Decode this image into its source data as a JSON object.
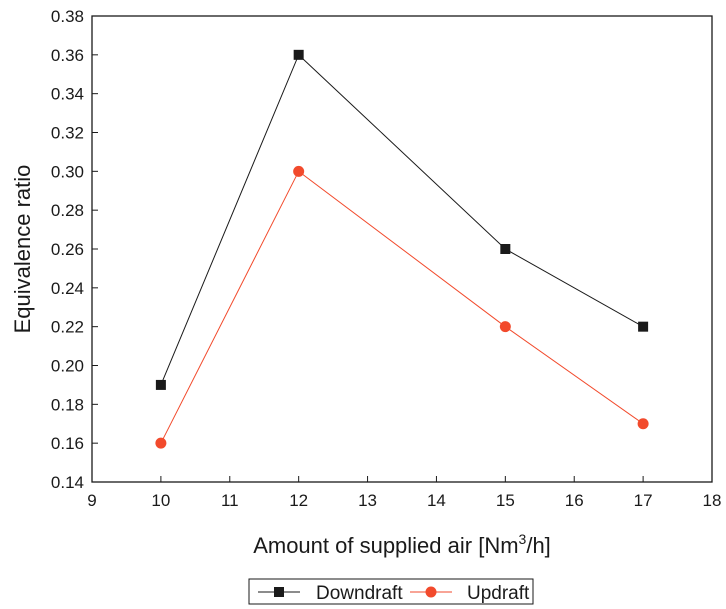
{
  "chart_data": {
    "type": "line",
    "xlabel_main": "Amount of supplied air [Nm",
    "xlabel_sup": "3",
    "xlabel_tail": "/h]",
    "ylabel": "Equivalence ratio",
    "xlim": [
      9,
      18
    ],
    "ylim": [
      0.14,
      0.38
    ],
    "xticks": [
      "9",
      "10",
      "11",
      "12",
      "13",
      "14",
      "15",
      "16",
      "17",
      "18"
    ],
    "yticks": [
      "0.14",
      "0.16",
      "0.18",
      "0.20",
      "0.22",
      "0.24",
      "0.26",
      "0.28",
      "0.30",
      "0.32",
      "0.34",
      "0.36",
      "0.38"
    ],
    "grid": false,
    "legend_position": "bottom",
    "series": [
      {
        "name": "Downdraft",
        "color": "#1a1a1a",
        "marker": "square",
        "x": [
          10,
          12,
          15,
          17
        ],
        "y": [
          0.19,
          0.36,
          0.26,
          0.22
        ]
      },
      {
        "name": "Updraft",
        "color": "#f24a2c",
        "marker": "circle",
        "x": [
          10,
          12,
          15,
          17
        ],
        "y": [
          0.16,
          0.3,
          0.22,
          0.17
        ]
      }
    ]
  }
}
